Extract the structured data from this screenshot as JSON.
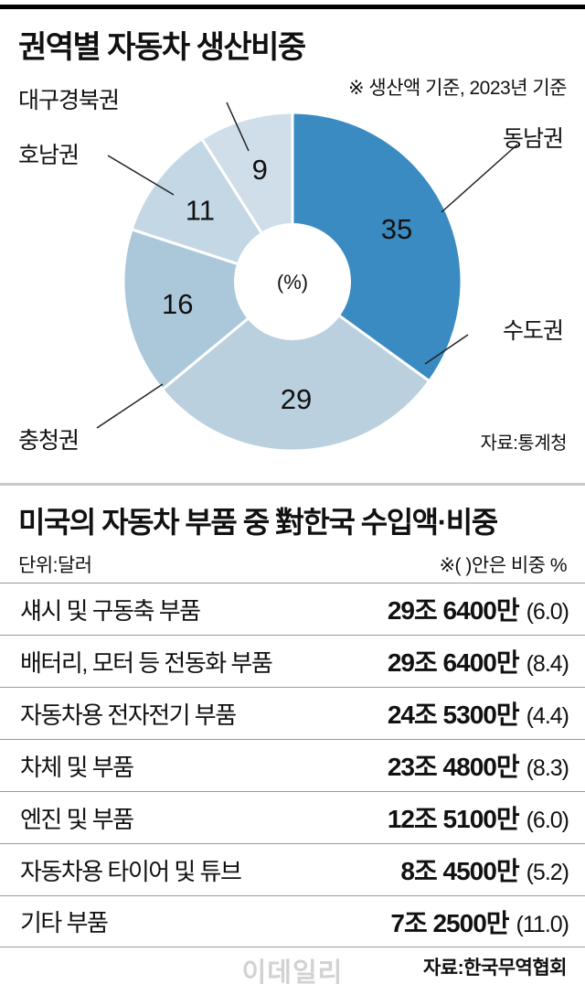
{
  "section1": {
    "title": "권역별 자동차 생산비중",
    "note": "※ 생산액 기준, 2023년 기준",
    "center_label": "(%)",
    "source": "자료:통계청",
    "labels": {
      "daegu": "대구경북권",
      "honam": "호남권",
      "dongnam": "동남권",
      "sudo": "수도권",
      "chungcheong": "충청권"
    }
  },
  "chart_data": {
    "type": "pie",
    "title": "권역별 자동차 생산비중",
    "unit": "%",
    "donut": true,
    "start_angle_deg": 0,
    "clockwise": true,
    "total": 100,
    "categories": [
      "동남권",
      "수도권",
      "충청권",
      "호남권",
      "대구경북권"
    ],
    "values": [
      35,
      29,
      16,
      11,
      9
    ],
    "colors": [
      "#3a8bc2",
      "#bad0df",
      "#abc8db",
      "#c4d7e4",
      "#cfdee9"
    ]
  },
  "section2": {
    "title": "미국의 자동차 부품 중 對한국 수입액·비중",
    "unit_note": "단위:달러",
    "paren_note": "※(  )안은 비중 %",
    "source": "자료:한국무역협회",
    "rows": [
      {
        "label": "섀시 및 구동축 부품",
        "value": "29조 6400만",
        "share": "(6.0)"
      },
      {
        "label": "배터리, 모터 등 전동화 부품",
        "value": "29조 6400만",
        "share": "(8.4)"
      },
      {
        "label": "자동차용 전자전기 부품",
        "value": "24조 5300만",
        "share": "(4.4)"
      },
      {
        "label": "차체 및 부품",
        "value": "23조 4800만",
        "share": "(8.3)"
      },
      {
        "label": "엔진 및 부품",
        "value": "12조 5100만",
        "share": "(6.0)"
      },
      {
        "label": "자동차용 타이어 및 튜브",
        "value": "8조 4500만",
        "share": "(5.2)"
      },
      {
        "label": "기타 부품",
        "value": "7조 2500만",
        "share": "(11.0)"
      }
    ]
  },
  "watermark": "이데일리"
}
